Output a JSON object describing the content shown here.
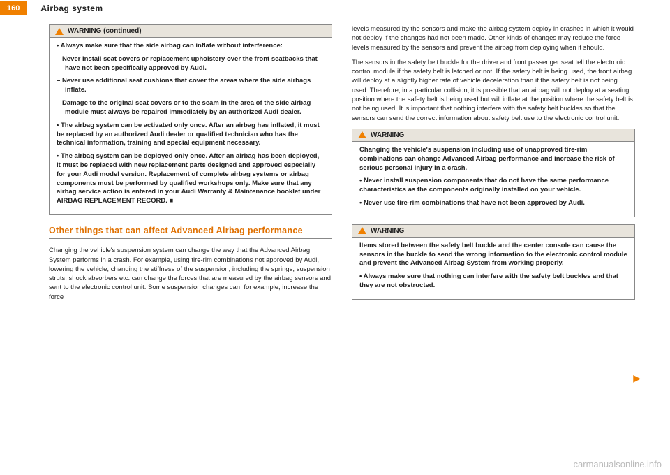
{
  "page_number": "160",
  "header_title": "Airbag system",
  "warning_continued": {
    "header": "WARNING (continued)",
    "items": [
      {
        "cls": "bullet bold",
        "text": "Always make sure that the side airbag can inflate without interference:"
      },
      {
        "cls": "dash bold",
        "text": "Never install seat covers or replacement upholstery over the front seatbacks that have not been specifically approved by Audi."
      },
      {
        "cls": "dash bold",
        "text": "Never use additional seat cushions that cover the areas where the side airbags inflate."
      },
      {
        "cls": "dash bold",
        "text": "Damage to the original seat covers or to the seam in the area of the side airbag module must always be repaired immediately by an authorized Audi dealer."
      },
      {
        "cls": "bullet bold",
        "text": "The airbag system can be activated only once. After an airbag has inflated, it must be replaced by an authorized Audi dealer or qualified technician who has the technical information, training and special equipment necessary."
      },
      {
        "cls": "bullet bold",
        "text": "The airbag system can be deployed only once. After an airbag has been deployed, it must be replaced with new replacement parts designed and approved especially for your Audi model version. Replacement of complete airbag systems or airbag components must be performed by qualified workshops only. Make sure that any airbag service action is entered in your Audi Warranty & Maintenance booklet under AIRBAG REPLACEMENT RECORD. ■"
      }
    ]
  },
  "section_title": "Other things that can affect Advanced Airbag performance",
  "left_body": "Changing the vehicle's suspension system can change the way that the Advanced Airbag System performs in a crash. For example, using tire-rim combinations not approved by Audi, lowering the vehicle, changing the stiffness of the suspension, including the springs, suspension struts, shock absorbers etc. can change the forces that are measured by the airbag sensors and sent to the electronic control unit. Some suspension changes can, for example, increase the force",
  "right_body_1": "levels measured by the sensors and make the airbag system deploy in crashes in which it would not deploy if the changes had not been made. Other kinds of changes may reduce the force levels measured by the sensors and prevent the airbag from deploying when it should.",
  "right_body_2": "The sensors in the safety belt buckle for the driver and front passenger seat tell the electronic control module if the safety belt is latched or not. If the safety belt is being used, the front airbag will deploy at a slightly higher rate of vehicle deceleration than if the safety belt is not being used. Therefore, in a particular collision, it is possible that an airbag will not deploy at a seating position where the safety belt is being used but will inflate at the position where the safety belt is not being used. It is important that nothing interfere with the safety belt buckles so that the sensors can send the correct information about safety belt use to the electronic control unit.",
  "warning2": {
    "header": "WARNING",
    "lead": "Changing the vehicle's suspension including use of unapproved tire-rim combinations can change Advanced Airbag performance and increase the risk of serious personal injury in a crash.",
    "items": [
      {
        "cls": "bullet bold",
        "text": "Never install suspension components that do not have the same performance characteristics as the components originally installed on your vehicle."
      },
      {
        "cls": "bullet bold",
        "text": "Never use tire-rim combinations that have not been approved by Audi."
      }
    ]
  },
  "warning3": {
    "header": "WARNING",
    "lead": "Items stored between the safety belt buckle and the center console can cause the sensors in the buckle to send the wrong information to the electronic control module and prevent the Advanced Airbag System from working properly.",
    "items": [
      {
        "cls": "bullet bold",
        "text": "Always make sure that nothing can interfere with the safety belt buckles and that they are not obstructed."
      }
    ]
  },
  "watermark": "carmanualsonline.info"
}
